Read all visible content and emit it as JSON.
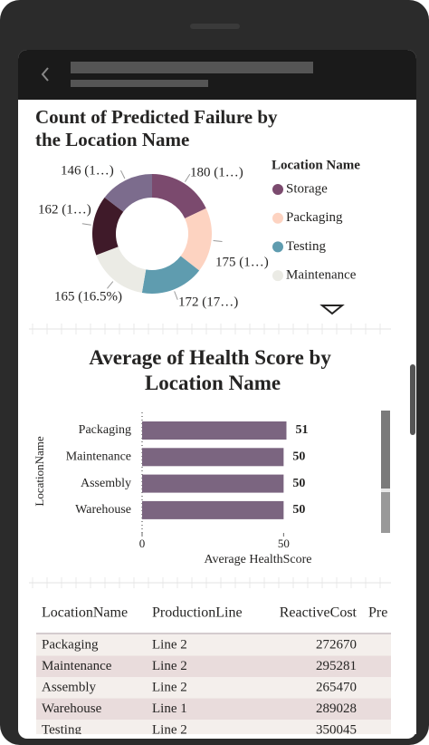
{
  "donut_chart": {
    "type": "donut",
    "title": "Count of Predicted Failure by the Location Name",
    "legend_title": "Location Name",
    "series": [
      {
        "name": "Storage",
        "color": "#7b4a6e",
        "value": 180,
        "value_label": "180 (1…)"
      },
      {
        "name": "Packaging",
        "color": "#fdd3c1",
        "value": 175,
        "value_label": "175 (1…)"
      },
      {
        "name": "Testing",
        "color": "#5f9caf",
        "value": 172,
        "value_label": "172 (17…)"
      },
      {
        "name": "Maintenance",
        "color": "#ebebe5",
        "value": 165,
        "value_label": "165 (16.5%)"
      },
      {
        "name": null,
        "color": "#3f1a29",
        "value": 162,
        "value_label": "162 (1…)"
      },
      {
        "name": null,
        "color": "#7c6c8d",
        "value": 146,
        "value_label": "146 (1…)"
      }
    ]
  },
  "bar_chart": {
    "type": "barh",
    "title": "Average of Health Score by Location Name",
    "y_label": "LocationName",
    "x_label": "Average HealthScore",
    "categories": [
      "Packaging",
      "Maintenance",
      "Assembly",
      "Warehouse"
    ],
    "values": [
      51,
      50,
      50,
      50
    ],
    "color": "#7b6580",
    "xlim": [
      0,
      55
    ],
    "xticks": [
      0,
      50
    ]
  },
  "table": {
    "columns": [
      "LocationName",
      "ProductionLine",
      "ReactiveCost",
      "Pre"
    ],
    "rows": [
      [
        "Packaging",
        "Line 2",
        272670
      ],
      [
        "Maintenance",
        "Line 2",
        295281
      ],
      [
        "Assembly",
        "Line 2",
        265470
      ],
      [
        "Warehouse",
        "Line 1",
        289028
      ],
      [
        "Testing",
        "Line 2",
        350045
      ]
    ]
  }
}
